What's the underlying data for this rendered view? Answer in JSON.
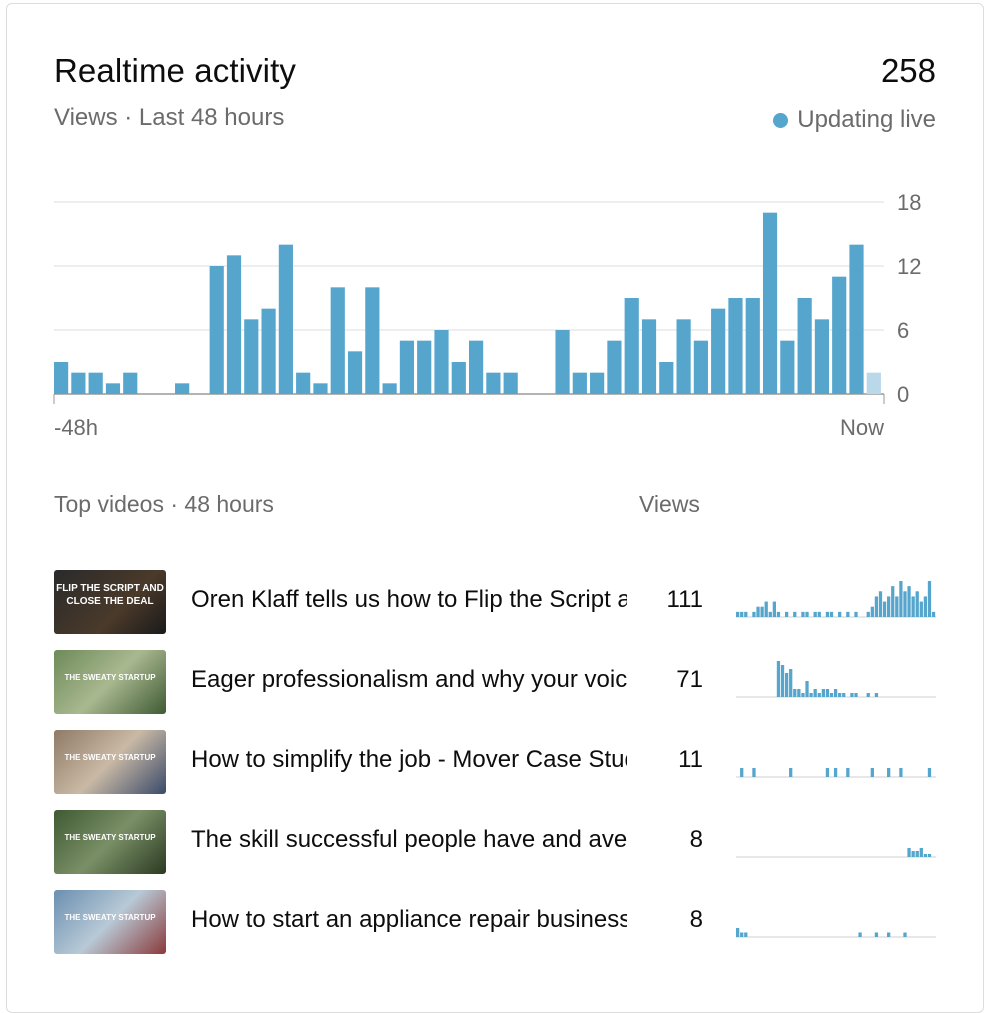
{
  "header": {
    "title": "Realtime activity",
    "total": "258",
    "subtitle": "Views · Last 48 hours",
    "live_label": "Updating live"
  },
  "colors": {
    "bar": "#55a5cd",
    "bar_current": "#b9d8e9",
    "grid": "#dedede",
    "muted_text": "#6b6b6b"
  },
  "chart_data": {
    "type": "bar",
    "x_start_label": "-48h",
    "x_end_label": "Now",
    "y_ticks": [
      "18",
      "12",
      "6",
      "0"
    ],
    "ylim": [
      0,
      18
    ],
    "grid": true,
    "values": [
      3,
      2,
      2,
      1,
      2,
      0,
      0,
      1,
      0,
      12,
      13,
      7,
      8,
      14,
      2,
      1,
      10,
      4,
      10,
      1,
      5,
      5,
      6,
      3,
      5,
      2,
      2,
      0,
      0,
      6,
      2,
      2,
      5,
      9,
      7,
      3,
      7,
      5,
      8,
      9,
      9,
      17,
      5,
      9,
      7,
      11,
      14,
      2
    ],
    "current_hour_partial": true
  },
  "top_videos": {
    "title": "Top videos · 48 hours",
    "views_header": "Views",
    "items": [
      {
        "title": "Oren Klaff tells us how to Flip the Script and Close the Deal",
        "views": "111",
        "thumb_caption": "FLIP THE SCRIPT AND CLOSE THE DEAL",
        "thumb_icon": "video-thumbnail-flip-the-script",
        "spark": [
          1,
          1,
          1,
          0,
          1,
          2,
          2,
          3,
          1,
          3,
          1,
          0,
          1,
          0,
          1,
          0,
          1,
          1,
          0,
          1,
          1,
          0,
          1,
          1,
          0,
          1,
          0,
          1,
          0,
          1,
          0,
          0,
          1,
          2,
          4,
          5,
          3,
          4,
          6,
          4,
          7,
          5,
          6,
          4,
          5,
          3,
          4,
          7,
          1
        ]
      },
      {
        "title": "Eager professionalism and why your voice matters",
        "views": "71",
        "thumb_caption": "THE SWEATY STARTUP",
        "thumb_icon": "video-thumbnail-eager-professionalism",
        "spark": [
          0,
          0,
          0,
          0,
          0,
          0,
          0,
          0,
          0,
          0,
          9,
          8,
          6,
          7,
          2,
          2,
          1,
          4,
          1,
          2,
          1,
          2,
          2,
          1,
          2,
          1,
          1,
          0,
          1,
          1,
          0,
          0,
          1,
          0,
          1,
          0,
          0,
          0,
          0,
          0,
          0,
          0,
          0,
          0,
          0,
          0,
          0,
          0,
          0
        ]
      },
      {
        "title": "How to simplify the job - Mover Case Study",
        "views": "11",
        "thumb_caption": "THE SWEATY STARTUP",
        "thumb_icon": "video-thumbnail-simplify-the-job",
        "spark": [
          0,
          1,
          0,
          0,
          1,
          0,
          0,
          0,
          0,
          0,
          0,
          0,
          0,
          1,
          0,
          0,
          0,
          0,
          0,
          0,
          0,
          0,
          1,
          0,
          1,
          0,
          0,
          1,
          0,
          0,
          0,
          0,
          0,
          1,
          0,
          0,
          0,
          1,
          0,
          0,
          1,
          0,
          0,
          0,
          0,
          0,
          0,
          1,
          0
        ]
      },
      {
        "title": "The skill successful people have and average people lack",
        "views": "8",
        "thumb_caption": "THE SWEATY STARTUP",
        "thumb_icon": "video-thumbnail-skill-successful-people",
        "spark": [
          0,
          0,
          0,
          0,
          0,
          0,
          0,
          0,
          0,
          0,
          0,
          0,
          0,
          0,
          0,
          0,
          0,
          0,
          0,
          0,
          0,
          0,
          0,
          0,
          0,
          0,
          0,
          0,
          0,
          0,
          0,
          0,
          0,
          0,
          0,
          0,
          0,
          0,
          0,
          0,
          0,
          0,
          3,
          2,
          2,
          3,
          1,
          1,
          0
        ]
      },
      {
        "title": "How to start an appliance repair business",
        "views": "8",
        "thumb_caption": "THE SWEATY STARTUP",
        "thumb_icon": "video-thumbnail-appliance-repair",
        "spark": [
          2,
          1,
          1,
          0,
          0,
          0,
          0,
          0,
          0,
          0,
          0,
          0,
          0,
          0,
          0,
          0,
          0,
          0,
          0,
          0,
          0,
          0,
          0,
          0,
          0,
          0,
          0,
          0,
          0,
          0,
          1,
          0,
          0,
          0,
          1,
          0,
          0,
          1,
          0,
          0,
          0,
          1,
          0,
          0,
          0,
          0,
          0,
          0,
          0
        ]
      }
    ]
  }
}
